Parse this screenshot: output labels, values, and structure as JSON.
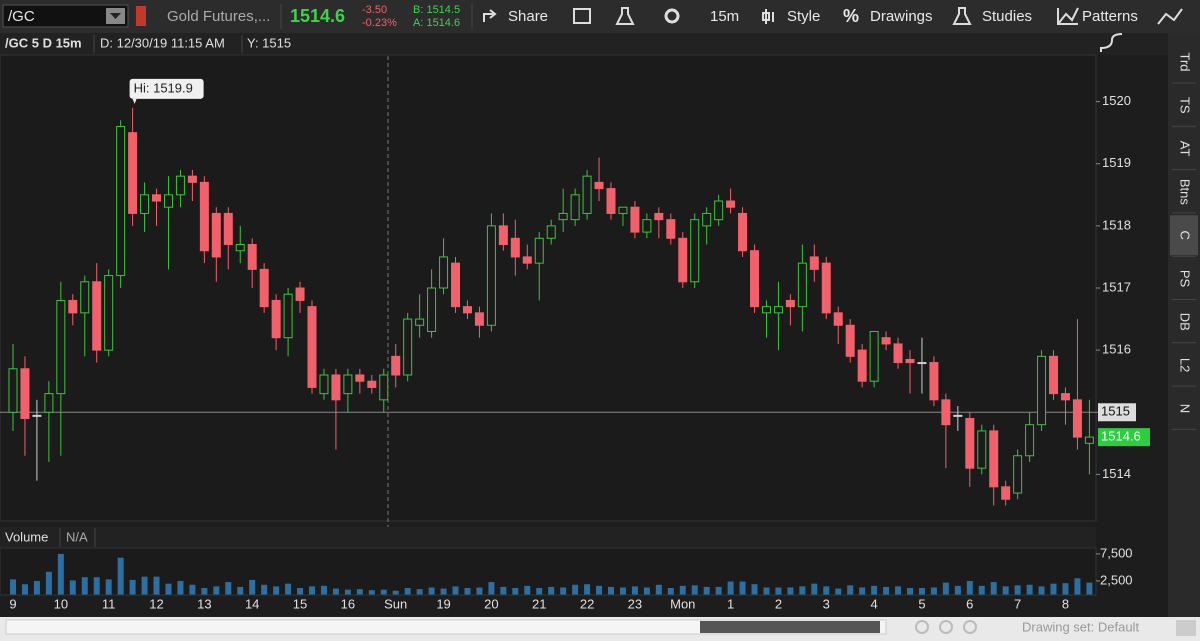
{
  "toolbar": {
    "symbol": "/GC",
    "description": "Gold Futures,...",
    "last": "1514.6",
    "change": "-3.50",
    "change_pct": "-0.23%",
    "bid": "B: 1514.5",
    "ask": "A: 1514.6",
    "buttons": [
      "Share",
      "15m",
      "Style",
      "Drawings",
      "Studies",
      "Patterns"
    ]
  },
  "chart_header": {
    "symbol": "/GC 5 D 15m",
    "date": "D: 12/30/19 11:15 AM",
    "y": "Y: 1515"
  },
  "sidebar": [
    "Trd",
    "TS",
    "AT",
    "Btns",
    "C",
    "PS",
    "DB",
    "L2",
    "N"
  ],
  "footer": {
    "drawing_set": "Drawing set: Default"
  },
  "chart_data": [
    {
      "type": "candlestick",
      "up_color": "#3cc43c",
      "down_color": "#f2616b",
      "ylim": [
        1513.25,
        1520.75
      ],
      "yticks": [
        1514,
        1515,
        1516,
        1517,
        1518,
        1519,
        1520
      ],
      "annotation": "Hi: 1519.9",
      "crosshair_y": 1515,
      "last_price": 1514.6,
      "open": [
        1515.0,
        1515.7,
        1514.95,
        1515.0,
        1515.3,
        1516.8,
        1516.6,
        1517.1,
        1516.0,
        1517.2,
        1519.5,
        1518.2,
        1518.5,
        1518.3,
        1518.5,
        1518.8,
        1518.7,
        1518.2,
        1518.2,
        1517.6,
        1517.7,
        1517.3,
        1516.8,
        1516.2,
        1517.0,
        1516.7,
        1515.3,
        1515.6,
        1515.3,
        1515.6,
        1515.5,
        1515.2,
        1515.9,
        1515.6,
        1516.4,
        1516.3,
        1517.0,
        1517.4,
        1516.7,
        1516.6,
        1516.4,
        1518.0,
        1517.8,
        1517.5,
        1517.4,
        1517.8,
        1518.1,
        1518.1,
        1518.2,
        1518.7,
        1518.6,
        1518.2,
        1518.3,
        1517.9,
        1518.2,
        1518.1,
        1517.8,
        1517.1,
        1518.0,
        1518.1,
        1518.4,
        1518.2,
        1517.6,
        1516.6,
        1516.6,
        1516.8,
        1516.7,
        1517.5,
        1517.4,
        1516.6,
        1516.4,
        1516.0,
        1515.5,
        1516.2,
        1516.1,
        1515.85,
        1515.8,
        1515.8,
        1515.2,
        1514.95,
        1514.9,
        1514.1,
        1514.7,
        1513.8,
        1513.7,
        1514.3,
        1514.8,
        1515.9,
        1515.3,
        1515.2,
        1514.5
      ],
      "high": [
        1516.1,
        1515.9,
        1515.2,
        1515.5,
        1517.1,
        1516.9,
        1517.2,
        1517.4,
        1517.3,
        1519.7,
        1519.9,
        1518.7,
        1518.6,
        1518.8,
        1518.9,
        1518.9,
        1518.8,
        1518.3,
        1518.3,
        1518.0,
        1517.8,
        1517.4,
        1516.9,
        1517.0,
        1517.1,
        1516.8,
        1515.7,
        1515.7,
        1515.7,
        1515.7,
        1515.6,
        1515.7,
        1516.1,
        1516.6,
        1516.9,
        1517.3,
        1517.8,
        1517.5,
        1516.8,
        1516.7,
        1518.2,
        1518.2,
        1518.1,
        1517.7,
        1517.9,
        1518.1,
        1518.6,
        1518.6,
        1518.9,
        1519.1,
        1518.7,
        1518.3,
        1518.4,
        1518.2,
        1518.3,
        1518.2,
        1517.9,
        1518.2,
        1518.3,
        1518.5,
        1518.6,
        1518.3,
        1517.7,
        1516.8,
        1517.1,
        1516.9,
        1517.7,
        1517.7,
        1517.5,
        1516.7,
        1516.5,
        1516.1,
        1516.3,
        1516.3,
        1516.2,
        1516.0,
        1516.2,
        1515.9,
        1515.3,
        1515.1,
        1515.0,
        1514.8,
        1514.8,
        1513.9,
        1514.4,
        1515.0,
        1516.0,
        1516.0,
        1515.4,
        1516.5,
        1515.2
      ],
      "low": [
        1514.7,
        1514.3,
        1513.9,
        1514.2,
        1514.3,
        1516.4,
        1515.9,
        1515.8,
        1515.9,
        1517.0,
        1518.0,
        1517.9,
        1518.0,
        1517.3,
        1518.3,
        1518.4,
        1517.4,
        1517.1,
        1517.3,
        1517.4,
        1517.0,
        1516.6,
        1516.0,
        1515.9,
        1516.6,
        1515.3,
        1515.2,
        1514.4,
        1515.0,
        1515.3,
        1515.3,
        1515.0,
        1515.4,
        1515.5,
        1516.2,
        1516.2,
        1516.9,
        1516.6,
        1516.5,
        1516.2,
        1516.3,
        1517.6,
        1517.2,
        1517.3,
        1516.8,
        1517.7,
        1517.9,
        1518.0,
        1518.1,
        1518.4,
        1518.1,
        1518.0,
        1517.8,
        1517.8,
        1517.8,
        1517.7,
        1517.0,
        1517.0,
        1517.7,
        1518.0,
        1518.2,
        1517.5,
        1516.6,
        1516.2,
        1516.0,
        1516.4,
        1516.3,
        1517.1,
        1516.5,
        1516.1,
        1515.8,
        1515.4,
        1515.4,
        1516.0,
        1515.7,
        1515.3,
        1515.3,
        1515.1,
        1514.1,
        1514.7,
        1513.8,
        1514.0,
        1513.5,
        1513.5,
        1513.6,
        1514.2,
        1514.7,
        1515.2,
        1514.8,
        1514.4,
        1514.0
      ],
      "close": [
        1515.7,
        1514.9,
        1514.95,
        1515.3,
        1516.8,
        1516.6,
        1517.1,
        1516.0,
        1517.2,
        1519.6,
        1518.2,
        1518.5,
        1518.4,
        1518.5,
        1518.8,
        1518.7,
        1517.6,
        1517.5,
        1517.7,
        1517.7,
        1517.3,
        1516.7,
        1516.2,
        1516.9,
        1516.8,
        1515.4,
        1515.6,
        1515.2,
        1515.6,
        1515.5,
        1515.4,
        1515.6,
        1515.6,
        1516.5,
        1516.5,
        1517.0,
        1517.5,
        1516.7,
        1516.6,
        1516.4,
        1518.0,
        1517.7,
        1517.5,
        1517.4,
        1517.8,
        1518.0,
        1518.2,
        1518.5,
        1518.8,
        1518.6,
        1518.2,
        1518.3,
        1517.9,
        1518.1,
        1518.1,
        1517.8,
        1517.1,
        1518.1,
        1518.2,
        1518.4,
        1518.3,
        1517.6,
        1516.7,
        1516.7,
        1516.7,
        1516.7,
        1517.4,
        1517.3,
        1516.6,
        1516.4,
        1515.9,
        1515.5,
        1516.3,
        1516.1,
        1515.8,
        1515.8,
        1515.8,
        1515.2,
        1514.8,
        1514.95,
        1514.1,
        1514.7,
        1513.8,
        1513.6,
        1514.3,
        1514.8,
        1515.9,
        1515.3,
        1515.2,
        1514.6,
        1514.6
      ]
    },
    {
      "type": "bar",
      "title": "Volume",
      "subtitle": "N/A",
      "color": "#2b6fa3",
      "ylim": [
        0,
        8600
      ],
      "yticks": [
        {
          "value": 7500,
          "label": "7,500"
        },
        {
          "value": 2500,
          "label": "2,500"
        }
      ],
      "categories": [
        "9",
        null,
        null,
        null,
        "10",
        null,
        null,
        null,
        "11",
        null,
        null,
        null,
        "12",
        null,
        null,
        null,
        "13",
        null,
        null,
        null,
        "14",
        null,
        null,
        null,
        "15",
        null,
        null,
        null,
        "16",
        null,
        null,
        null,
        "Sun",
        null,
        null,
        null,
        "19",
        null,
        null,
        null,
        "20",
        null,
        null,
        null,
        "21",
        null,
        null,
        null,
        "22",
        null,
        null,
        null,
        "23",
        null,
        null,
        null,
        "Mon",
        null,
        null,
        null,
        "1",
        null,
        null,
        null,
        "2",
        null,
        null,
        null,
        "3",
        null,
        null,
        null,
        "4",
        null,
        null,
        null,
        "5",
        null,
        null,
        null,
        "6",
        null,
        null,
        null,
        "7",
        null,
        null,
        null,
        "8",
        null,
        null
      ],
      "values": [
        2800,
        1900,
        2500,
        4200,
        7500,
        2600,
        3200,
        3200,
        2800,
        6800,
        2700,
        3300,
        3300,
        2000,
        2500,
        1800,
        1200,
        1500,
        2300,
        1400,
        2700,
        1800,
        1500,
        2000,
        1200,
        1500,
        1600,
        1100,
        900,
        1000,
        800,
        900,
        700,
        1200,
        1000,
        1300,
        1100,
        1500,
        1200,
        1300,
        2300,
        1400,
        1200,
        1600,
        1200,
        1400,
        1300,
        1800,
        1900,
        1600,
        1400,
        1300,
        1500,
        1300,
        1800,
        1200,
        1600,
        1700,
        1400,
        1400,
        2400,
        2400,
        1900,
        1300,
        1300,
        1300,
        1500,
        2000,
        1500,
        1100,
        1700,
        1300,
        1600,
        1400,
        1500,
        1200,
        1200,
        1300,
        2200,
        1600,
        2500,
        1600,
        2300,
        1500,
        1700,
        1800,
        1500,
        2000,
        2100,
        3000,
        2200
      ]
    }
  ]
}
